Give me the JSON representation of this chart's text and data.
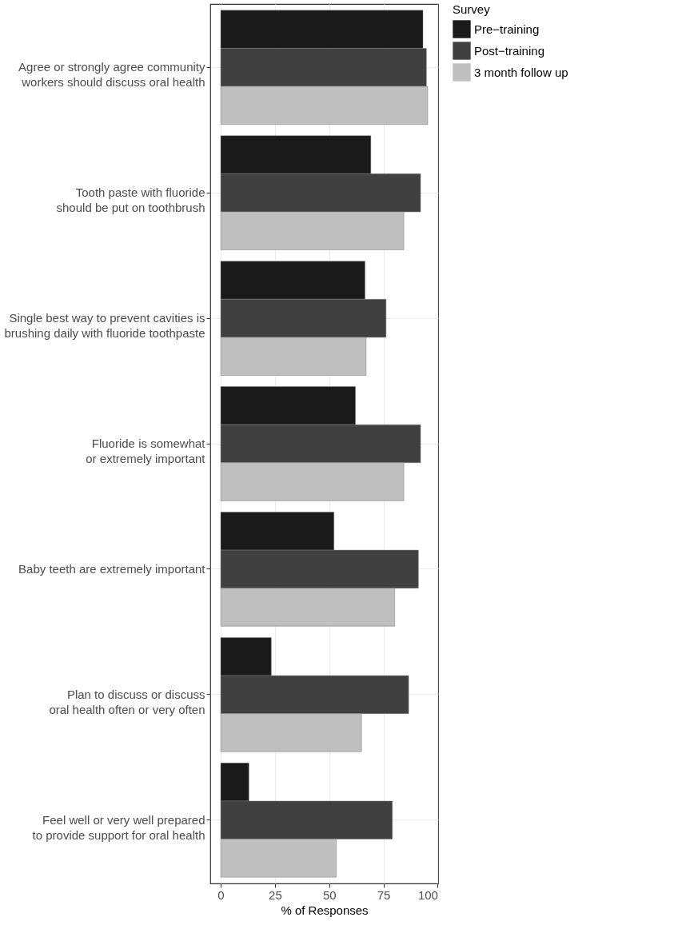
{
  "chart_data": {
    "type": "bar",
    "orientation": "horizontal",
    "xlabel": "% of Responses",
    "legend_title": "Survey",
    "legend": "right",
    "grid": true,
    "categories": [
      "Agree or strongly agree community workers should discuss oral health",
      "Tooth paste with fluoride should be put on toothbrush",
      "Single best way to prevent cavities is brushing daily with fluoride toothpaste",
      "Fluoride is somewhat or extremely important",
      "Baby teeth are extremely important",
      "Plan to discuss or discuss oral health often or very often",
      "Feel well or very well prepared to provide support for oral health"
    ],
    "series": [
      {
        "name": "Pre−training",
        "color": "#1a1a1a",
        "values": [
          93.2,
          69.2,
          66.5,
          62.1,
          52.2,
          23.3,
          13.0
        ]
      },
      {
        "name": "Post−training",
        "color": "#404040",
        "values": [
          94.8,
          92.1,
          76.2,
          92.1,
          91.1,
          86.6,
          79.1
        ]
      },
      {
        "name": "3 month follow up",
        "color": "#bfbfbf",
        "values": [
          95.4,
          84.4,
          67.0,
          84.4,
          80.2,
          64.9,
          53.3
        ]
      }
    ],
    "xlim": [
      -4.8,
      100.2
    ],
    "xticks": [
      0,
      25,
      50,
      75,
      100
    ]
  }
}
